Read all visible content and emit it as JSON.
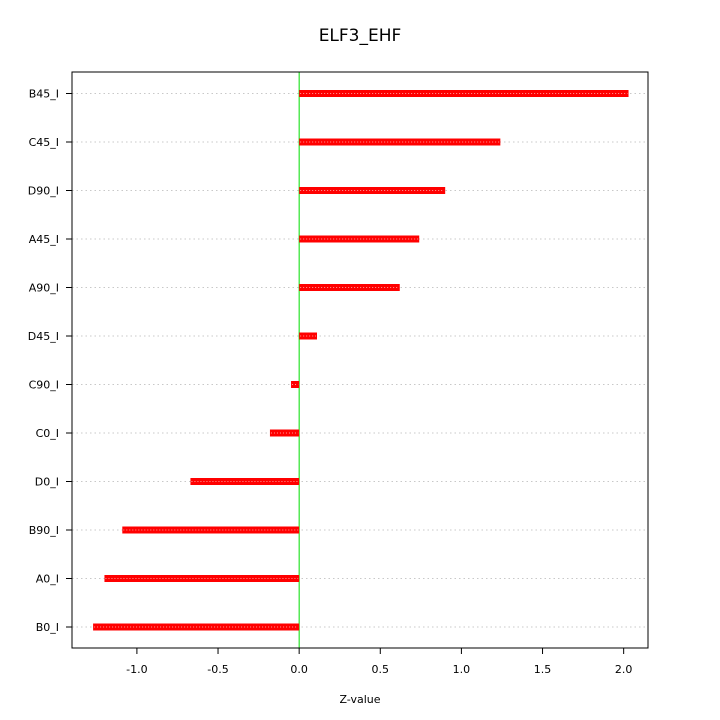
{
  "chart_data": {
    "type": "bar",
    "orientation": "horizontal",
    "title": "ELF3_EHF",
    "xlabel": "Z-value",
    "ylabel": "",
    "categories": [
      "B45_I",
      "C45_I",
      "D90_I",
      "A45_I",
      "A90_I",
      "D45_I",
      "C90_I",
      "C0_I",
      "D0_I",
      "B90_I",
      "A0_I",
      "B0_I"
    ],
    "values": [
      2.03,
      1.24,
      0.9,
      0.74,
      0.62,
      0.11,
      -0.05,
      -0.18,
      -0.67,
      -1.09,
      -1.2,
      -1.27
    ],
    "xlim": [
      -1.4,
      2.15
    ],
    "xticks": [
      "-1.0",
      "-0.5",
      "0.0",
      "0.5",
      "1.0",
      "1.5",
      "2.0"
    ],
    "xtick_values": [
      -1.0,
      -0.5,
      0.0,
      0.5,
      1.0,
      1.5,
      2.0
    ],
    "reference_line": 0,
    "grid": "horizontal dotted",
    "colors": {
      "bar": "#ff0000",
      "bar_center": "#ff9a9a",
      "reference_line": "#00dd00",
      "grid": "#c8c8c8",
      "axis": "#000000"
    }
  }
}
